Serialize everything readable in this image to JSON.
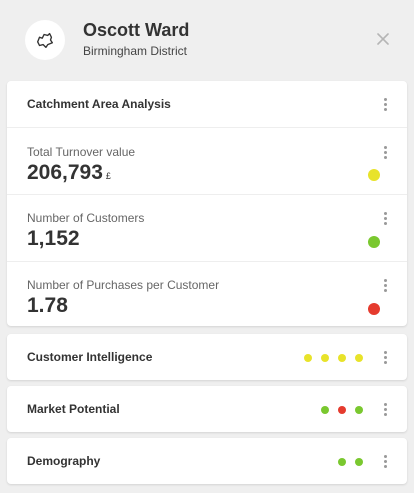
{
  "header": {
    "title": "Oscott Ward",
    "subtitle": "Birmingham District",
    "avatar_icon": "map-region-icon",
    "close_icon": "close-icon"
  },
  "catchment": {
    "title": "Catchment Area Analysis",
    "metrics": [
      {
        "label": "Total Turnover value",
        "value": "206,793",
        "unit": "£",
        "status_color": "#e8e32a"
      },
      {
        "label": "Number of Customers",
        "value": "1,152",
        "unit": "",
        "status_color": "#7ac82f"
      },
      {
        "label": "Number of Purchases per Customer",
        "value": "1.78",
        "unit": "",
        "status_color": "#e53b2e"
      }
    ]
  },
  "sections": [
    {
      "title": "Customer Intelligence",
      "dots": [
        "#e8e32a",
        "#e8e32a",
        "#e8e32a",
        "#e8e32a"
      ]
    },
    {
      "title": "Market Potential",
      "dots": [
        "#7ac82f",
        "#e53b2e",
        "#7ac82f"
      ]
    },
    {
      "title": "Demography",
      "dots": [
        "#7ac82f",
        "#7ac82f"
      ]
    }
  ]
}
